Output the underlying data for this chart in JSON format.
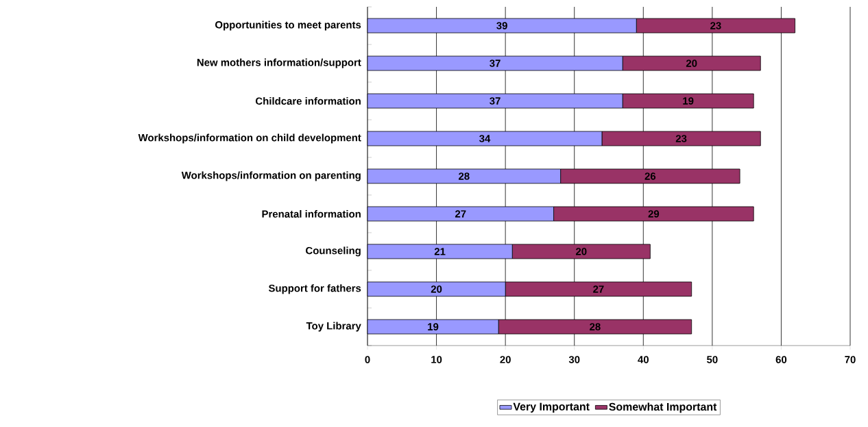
{
  "chart_data": {
    "type": "bar",
    "orientation": "horizontal",
    "stacked": true,
    "categories": [
      "Opportunities to meet parents",
      "New mothers information/support",
      "Childcare information",
      "Workshops/information on child development",
      "Workshops/information on parenting",
      "Prenatal information",
      "Counseling",
      "Support for fathers",
      "Toy Library"
    ],
    "series": [
      {
        "name": "Very Important",
        "color": "#9999ff",
        "values": [
          39,
          37,
          37,
          34,
          28,
          27,
          21,
          20,
          19
        ]
      },
      {
        "name": "Somewhat Important",
        "color": "#993366",
        "values": [
          23,
          20,
          19,
          23,
          26,
          29,
          20,
          27,
          28
        ]
      }
    ],
    "xlim": [
      0,
      70
    ],
    "xticks": [
      0,
      10,
      20,
      30,
      40,
      50,
      60,
      70
    ],
    "grid": "x",
    "legend": "bottom",
    "data_labels": true
  }
}
